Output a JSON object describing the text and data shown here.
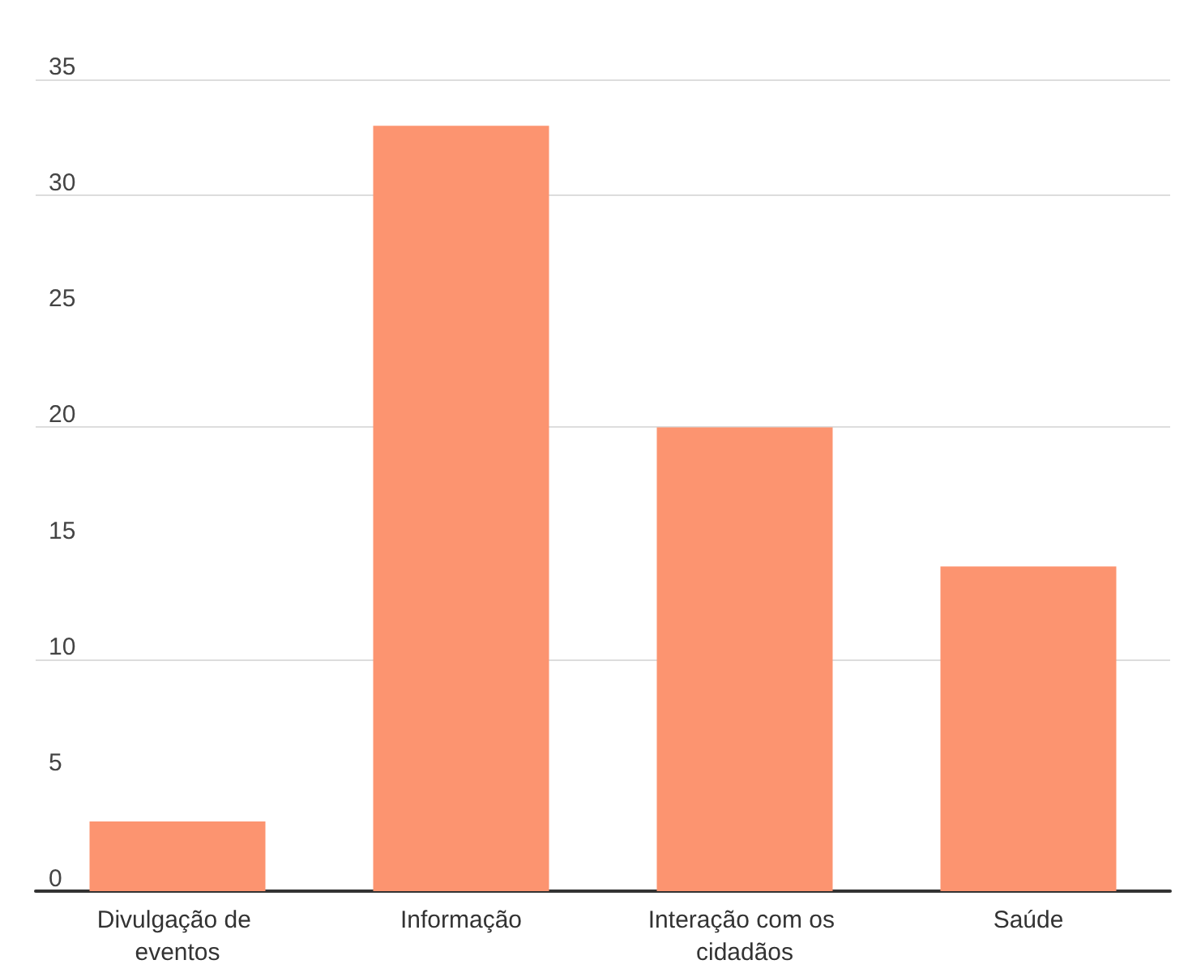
{
  "chart_data": {
    "type": "bar",
    "categories": [
      "Divulgação de eventos",
      "Informação",
      "Interação com os cidadãos",
      "Saúde"
    ],
    "values": [
      3,
      33,
      20,
      14
    ],
    "color": "#fc9470",
    "ylim": [
      0,
      35
    ],
    "yticks": [
      0,
      5,
      10,
      15,
      20,
      25,
      30,
      35
    ],
    "grid": "y"
  }
}
